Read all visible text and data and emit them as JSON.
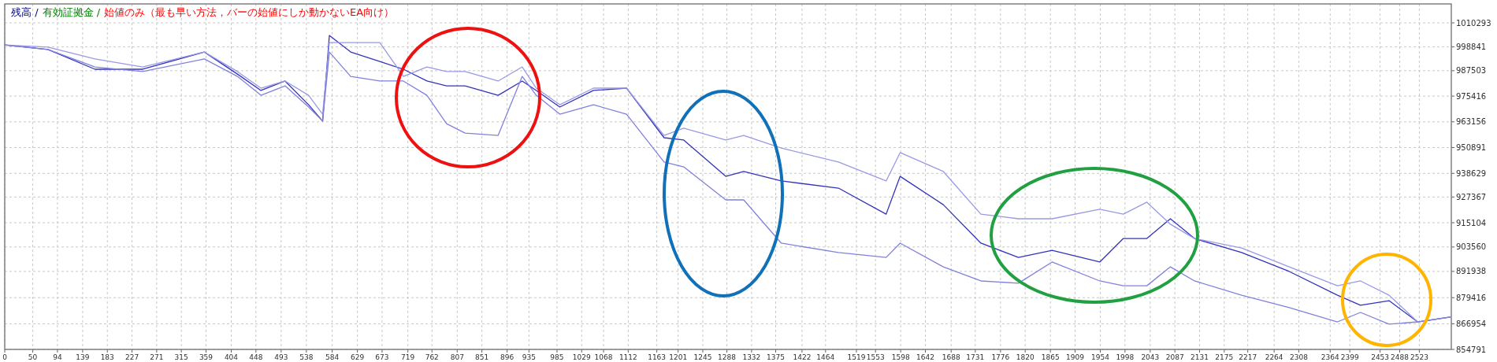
{
  "chart_data": {
    "type": "line",
    "annotations": [
      "残高 /",
      "有効証拠金 /",
      "始値のみ（最も早い方法，バーの始値にしか動かないEA向け）"
    ],
    "x": [
      0,
      77,
      161,
      246,
      356,
      415,
      457,
      500,
      542,
      567,
      579,
      617,
      669,
      711,
      753,
      788,
      821,
      880,
      923,
      948,
      990,
      1050,
      1109,
      1176,
      1211,
      1286,
      1318,
      1385,
      1487,
      1572,
      1597,
      1674,
      1741,
      1808,
      1868,
      1953,
      1995,
      2037,
      2079,
      2122,
      2206,
      2291,
      2377,
      2418,
      2469,
      2520,
      2578
    ],
    "series": [
      {
        "color": "#3333bb",
        "values": [
          999800,
          997600,
          988200,
          988200,
          996400,
          985900,
          978100,
          982600,
          971300,
          963500,
          1004300,
          996400,
          991900,
          988200,
          982600,
          980300,
          980300,
          975800,
          982600,
          978100,
          970200,
          978100,
          979200,
          955600,
          954500,
          937200,
          939500,
          935000,
          931600,
          919200,
          937200,
          923700,
          905400,
          898600,
          902000,
          896400,
          907600,
          907600,
          917000,
          907600,
          900900,
          891900,
          880600,
          875800,
          878000,
          867900,
          870200
        ]
      },
      {
        "color": "#9999e6",
        "values": [
          999800,
          998700,
          993100,
          989300,
          996400,
          987100,
          979200,
          982600,
          975800,
          966800,
          1000900,
          1000900,
          1000900,
          984800,
          989300,
          987100,
          987100,
          982600,
          989300,
          979200,
          971300,
          979200,
          979200,
          956700,
          960100,
          954500,
          956700,
          950700,
          944000,
          935000,
          948500,
          939500,
          919200,
          917000,
          917000,
          921500,
          919200,
          924900,
          914400,
          907600,
          903100,
          894100,
          885100,
          887400,
          880600,
          867900,
          870200
        ]
      },
      {
        "color": "#8080dd",
        "values": [
          999800,
          997600,
          989300,
          987100,
          993100,
          984800,
          975800,
          980300,
          970200,
          963500,
          996400,
          984800,
          982600,
          982600,
          975800,
          962300,
          957800,
          956700,
          984800,
          975800,
          966800,
          971300,
          966800,
          944000,
          941700,
          926000,
          926000,
          905400,
          900900,
          898600,
          905400,
          894100,
          887400,
          886300,
          896400,
          887400,
          885100,
          885100,
          894100,
          887400,
          880600,
          874700,
          867900,
          872400,
          866800,
          867900,
          870200
        ]
      }
    ],
    "xlim": [
      0,
      2580
    ],
    "ylim": [
      854791,
      1019300
    ],
    "xticks": [
      0,
      50,
      94,
      139,
      183,
      227,
      271,
      315,
      359,
      404,
      448,
      493,
      538,
      584,
      629,
      673,
      719,
      762,
      807,
      851,
      896,
      935,
      985,
      1029,
      1068,
      1112,
      1163,
      1201,
      1245,
      1288,
      1332,
      1375,
      1422,
      1464,
      1519,
      1553,
      1598,
      1642,
      1688,
      1731,
      1776,
      1820,
      1865,
      1909,
      1954,
      1998,
      2043,
      2087,
      2131,
      2175,
      2217,
      2264,
      2308,
      2364,
      2399,
      2453,
      2488,
      2523
    ],
    "yticks": [
      1010293,
      998841,
      987503,
      975416,
      963156,
      950891,
      938629,
      927367,
      915104,
      903560,
      891938,
      879416,
      866954,
      854791
    ],
    "grid": true
  }
}
